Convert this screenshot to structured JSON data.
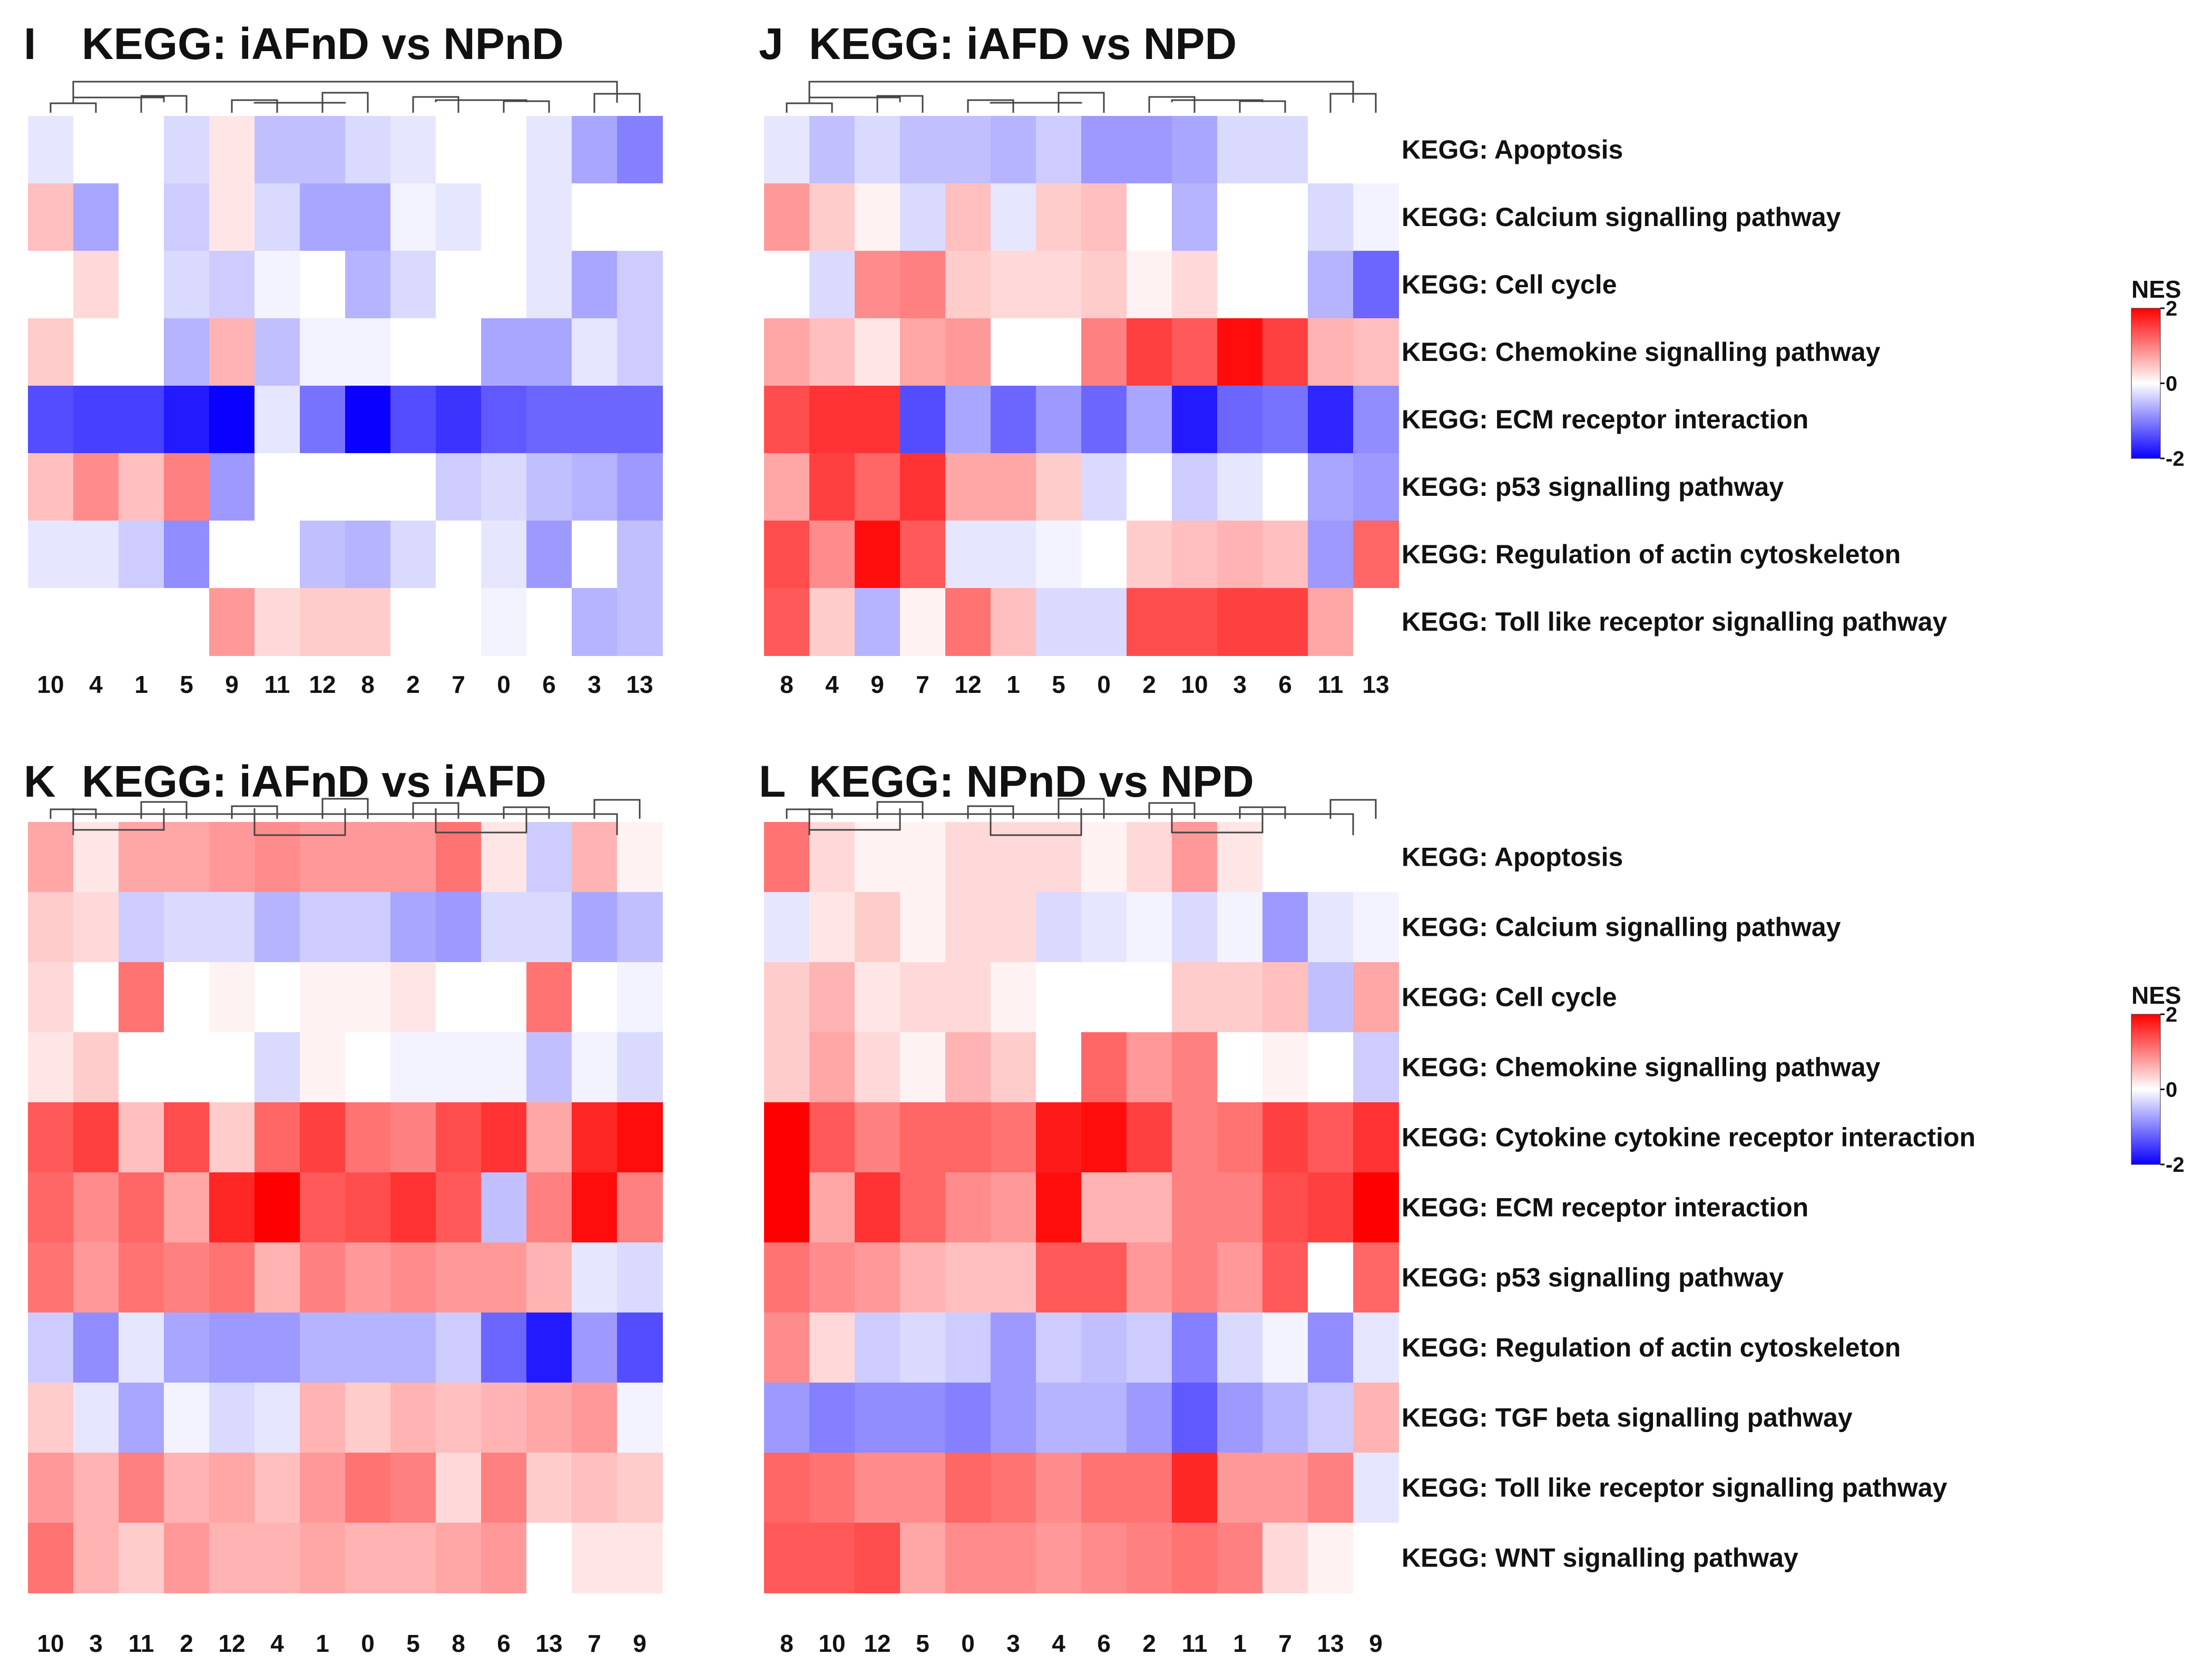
{
  "figure": {
    "legend_title": "NES",
    "legend_ticks": [
      "2",
      "0",
      "-2"
    ],
    "colors": {
      "low": "#0a00ff",
      "mid": "#ffffff",
      "high": "#ff0000"
    }
  },
  "chart_data": [
    {
      "type": "heatmap",
      "panel": "I",
      "title": "KEGG: iAFnD vs NPnD",
      "columns": [
        "10",
        "4",
        "1",
        "5",
        "9",
        "11",
        "12",
        "8",
        "2",
        "7",
        "0",
        "6",
        "3",
        "13"
      ],
      "rows": [
        "KEGG: Apoptosis",
        "KEGG: Calcium signalling pathway",
        "KEGG: Cell cycle",
        "KEGG: Chemokine signalling pathway",
        "KEGG: ECM receptor interaction",
        "KEGG: p53 signalling pathway",
        "KEGG: Regulation of actin cytoskeleton",
        "KEGG: Toll like receptor signalling pathway"
      ],
      "values": [
        [
          -0.2,
          0,
          0,
          -0.3,
          0.2,
          -0.5,
          -0.5,
          -0.3,
          -0.2,
          0,
          0,
          -0.2,
          -0.7,
          -1.0
        ],
        [
          0.5,
          -0.7,
          0,
          -0.4,
          0.2,
          -0.3,
          -0.7,
          -0.7,
          -0.1,
          -0.2,
          0,
          -0.2,
          0,
          0
        ],
        [
          0,
          0.3,
          0,
          -0.3,
          -0.4,
          -0.1,
          0,
          -0.6,
          -0.3,
          0,
          0,
          -0.2,
          -0.7,
          -0.4
        ],
        [
          0.4,
          0,
          0,
          -0.6,
          0.6,
          -0.5,
          -0.1,
          -0.1,
          0,
          0,
          -0.7,
          -0.7,
          -0.2,
          -0.4
        ],
        [
          -1.4,
          -1.5,
          -1.5,
          -1.8,
          -2.0,
          -0.2,
          -1.1,
          -2.0,
          -1.4,
          -1.6,
          -1.3,
          -1.2,
          -1.2,
          -1.2
        ],
        [
          0.5,
          0.9,
          0.5,
          1.0,
          -0.8,
          0,
          0,
          0,
          0,
          -0.4,
          -0.3,
          -0.5,
          -0.6,
          -0.8
        ],
        [
          -0.2,
          -0.2,
          -0.4,
          -0.9,
          0,
          0,
          -0.5,
          -0.6,
          -0.3,
          0,
          -0.2,
          -0.8,
          0,
          -0.5
        ],
        [
          0,
          0,
          0,
          0,
          0.8,
          0.3,
          0.4,
          0.4,
          0,
          0,
          -0.1,
          0,
          -0.6,
          -0.5
        ]
      ],
      "color_range": [
        -2,
        2
      ]
    },
    {
      "type": "heatmap",
      "panel": "J",
      "title": "KEGG: iAFD vs NPD",
      "columns": [
        "8",
        "4",
        "9",
        "7",
        "12",
        "1",
        "5",
        "0",
        "2",
        "10",
        "3",
        "6",
        "11",
        "13"
      ],
      "rows": [
        "KEGG: Apoptosis",
        "KEGG: Calcium signalling pathway",
        "KEGG: Cell cycle",
        "KEGG: Chemokine signalling pathway",
        "KEGG: ECM receptor interaction",
        "KEGG: p53 signalling pathway",
        "KEGG: Regulation of actin cytoskeleton",
        "KEGG: Toll like receptor signalling pathway"
      ],
      "values": [
        [
          -0.2,
          -0.5,
          -0.3,
          -0.5,
          -0.5,
          -0.6,
          -0.4,
          -0.8,
          -0.8,
          -0.7,
          -0.3,
          -0.3,
          0,
          0
        ],
        [
          0.8,
          0.4,
          0.1,
          -0.3,
          0.5,
          -0.2,
          0.4,
          0.5,
          0,
          -0.6,
          0,
          0,
          -0.3,
          -0.1
        ],
        [
          0,
          -0.3,
          0.9,
          1.0,
          0.4,
          0.3,
          0.3,
          0.4,
          0.1,
          0.3,
          0,
          0,
          -0.6,
          -1.2
        ],
        [
          0.7,
          0.5,
          0.2,
          0.7,
          0.8,
          0,
          0,
          1.0,
          1.5,
          1.3,
          1.9,
          1.5,
          0.6,
          0.5
        ],
        [
          1.4,
          1.6,
          1.6,
          -1.4,
          -0.7,
          -1.2,
          -0.8,
          -1.2,
          -0.7,
          -1.8,
          -1.2,
          -1.1,
          -1.7,
          -0.9
        ],
        [
          0.7,
          1.5,
          1.2,
          1.6,
          0.7,
          0.7,
          0.4,
          -0.3,
          0,
          -0.4,
          -0.2,
          0,
          -0.7,
          -0.8
        ],
        [
          1.4,
          0.9,
          1.9,
          1.3,
          -0.2,
          -0.2,
          -0.1,
          0,
          0.4,
          0.5,
          0.6,
          0.5,
          -0.8,
          1.2
        ],
        [
          1.3,
          0.4,
          -0.6,
          0.1,
          1.1,
          0.5,
          -0.3,
          -0.3,
          1.4,
          1.4,
          1.5,
          1.5,
          0.7,
          0
        ]
      ],
      "color_range": [
        -2,
        2
      ]
    },
    {
      "type": "heatmap",
      "panel": "K",
      "title": "KEGG: iAFnD vs iAFD",
      "columns": [
        "10",
        "3",
        "11",
        "2",
        "12",
        "4",
        "1",
        "0",
        "5",
        "8",
        "6",
        "13",
        "7",
        "9"
      ],
      "rows": [
        "KEGG: Apoptosis",
        "KEGG: Calcium signalling pathway",
        "KEGG: Cell cycle",
        "KEGG: Chemokine signalling pathway",
        "KEGG: Cytokine cytokine receptor interaction",
        "KEGG: ECM receptor interaction",
        "KEGG: p53 signalling pathway",
        "KEGG: Regulation of actin cytoskeleton",
        "KEGG: TGF beta signalling pathway",
        "KEGG: Toll like receptor signalling pathway",
        "KEGG: WNT signalling pathway"
      ],
      "values": [
        [
          0.7,
          0.2,
          0.7,
          0.7,
          0.8,
          0.9,
          0.8,
          0.8,
          0.8,
          1.1,
          0.2,
          -0.4,
          0.6,
          0.1
        ],
        [
          0.4,
          0.3,
          -0.4,
          -0.3,
          -0.3,
          -0.6,
          -0.4,
          -0.4,
          -0.7,
          -0.8,
          -0.3,
          -0.3,
          -0.7,
          -0.5
        ],
        [
          0.3,
          0,
          1.1,
          0,
          0.1,
          0,
          0.1,
          0.1,
          0.2,
          0,
          0,
          1.1,
          0,
          -0.1
        ],
        [
          0.2,
          0.4,
          0,
          0,
          0,
          -0.3,
          0.1,
          0,
          -0.1,
          -0.1,
          -0.1,
          -0.5,
          -0.1,
          -0.3
        ],
        [
          1.3,
          1.5,
          0.5,
          1.4,
          0.4,
          1.2,
          1.5,
          1.1,
          1.0,
          1.4,
          1.6,
          0.7,
          1.7,
          1.9
        ],
        [
          1.2,
          0.9,
          1.2,
          0.7,
          1.7,
          2.0,
          1.3,
          1.4,
          1.6,
          1.3,
          -0.5,
          1.0,
          1.9,
          1.0
        ],
        [
          1.1,
          0.8,
          1.1,
          1.0,
          1.1,
          0.6,
          1.0,
          0.8,
          0.9,
          0.8,
          0.8,
          0.6,
          -0.2,
          -0.3
        ],
        [
          -0.4,
          -0.9,
          -0.2,
          -0.7,
          -0.8,
          -0.8,
          -0.6,
          -0.6,
          -0.6,
          -0.4,
          -1.2,
          -1.8,
          -0.8,
          -1.4
        ],
        [
          0.4,
          -0.2,
          -0.7,
          -0.1,
          -0.3,
          -0.2,
          0.6,
          0.4,
          0.6,
          0.5,
          0.6,
          0.7,
          0.8,
          -0.1
        ],
        [
          0.8,
          0.6,
          1.0,
          0.6,
          0.7,
          0.5,
          0.8,
          1.1,
          1.0,
          0.3,
          1.0,
          0.4,
          0.5,
          0.4
        ],
        [
          1.1,
          0.6,
          0.4,
          0.8,
          0.6,
          0.6,
          0.7,
          0.6,
          0.6,
          0.7,
          0.8,
          0,
          0.2,
          0.2
        ]
      ],
      "color_range": [
        -2,
        2
      ]
    },
    {
      "type": "heatmap",
      "panel": "L",
      "title": "KEGG: NPnD vs NPD",
      "columns": [
        "8",
        "10",
        "12",
        "5",
        "0",
        "3",
        "4",
        "6",
        "2",
        "11",
        "1",
        "7",
        "13",
        "9"
      ],
      "rows": [
        "KEGG: Apoptosis",
        "KEGG: Calcium signalling pathway",
        "KEGG: Cell cycle",
        "KEGG: Chemokine signalling pathway",
        "KEGG: Cytokine cytokine receptor interaction",
        "KEGG: ECM receptor interaction",
        "KEGG: p53 signalling pathway",
        "KEGG: Regulation of actin cytoskeleton",
        "KEGG: TGF beta signalling pathway",
        "KEGG: Toll like receptor signalling pathway",
        "KEGG: WNT signalling pathway"
      ],
      "values": [
        [
          1.1,
          0.3,
          0.1,
          0.1,
          0.3,
          0.3,
          0.3,
          0.1,
          0.3,
          0.8,
          0.2,
          0,
          0,
          0
        ],
        [
          -0.2,
          0.2,
          0.4,
          0.1,
          0.3,
          0.3,
          -0.3,
          -0.2,
          -0.1,
          -0.3,
          -0.1,
          -0.8,
          -0.2,
          -0.1
        ],
        [
          0.4,
          0.6,
          0.2,
          0.3,
          0.3,
          0.1,
          0,
          0,
          0,
          0.4,
          0.4,
          0.5,
          -0.5,
          0.7
        ],
        [
          0.4,
          0.7,
          0.3,
          0.1,
          0.6,
          0.4,
          0,
          1.2,
          0.8,
          1.0,
          0,
          0.1,
          0,
          -0.4
        ],
        [
          2.0,
          1.3,
          1.0,
          1.2,
          1.2,
          1.1,
          1.8,
          1.9,
          1.5,
          1.0,
          1.1,
          1.5,
          1.3,
          1.6
        ],
        [
          2.0,
          0.7,
          1.6,
          1.2,
          0.9,
          0.8,
          1.9,
          0.6,
          0.6,
          1.0,
          1.0,
          1.4,
          1.5,
          2.0
        ],
        [
          1.1,
          0.9,
          0.8,
          0.6,
          0.5,
          0.5,
          1.3,
          1.3,
          0.8,
          1.0,
          0.8,
          1.3,
          0,
          1.2
        ],
        [
          0.9,
          0.3,
          -0.4,
          -0.3,
          -0.4,
          -0.8,
          -0.4,
          -0.5,
          -0.4,
          -1.0,
          -0.3,
          -0.1,
          -0.9,
          -0.2
        ],
        [
          -0.8,
          -1.0,
          -0.9,
          -0.9,
          -1.0,
          -0.8,
          -0.6,
          -0.6,
          -0.8,
          -1.3,
          -0.8,
          -0.6,
          -0.4,
          0.6
        ],
        [
          1.2,
          1.1,
          0.9,
          0.9,
          1.2,
          1.1,
          0.9,
          1.1,
          1.1,
          1.7,
          0.8,
          0.8,
          1.0,
          -0.2
        ],
        [
          1.3,
          1.3,
          1.4,
          0.7,
          0.9,
          0.9,
          0.8,
          0.9,
          1.0,
          1.1,
          1.0,
          0.3,
          0.1,
          0
        ]
      ],
      "color_range": [
        -2,
        2
      ]
    }
  ]
}
